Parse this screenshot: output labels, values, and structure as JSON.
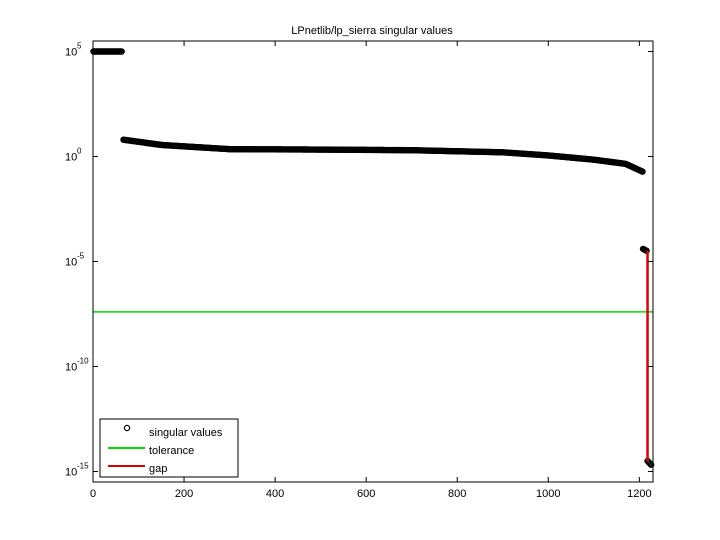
{
  "chart_data": {
    "type": "scatter",
    "title": "LPnetlib/lp_sierra singular values",
    "xlabel": "",
    "ylabel": "",
    "xlim": [
      0,
      1230
    ],
    "ylim_log10": [
      -15.5,
      5.5
    ],
    "y_scale": "log",
    "x_ticks": [
      0,
      200,
      400,
      600,
      800,
      1000,
      1200
    ],
    "y_ticks": [
      {
        "base": "10",
        "exp": "5",
        "log10": 5
      },
      {
        "base": "10",
        "exp": "0",
        "log10": 0
      },
      {
        "base": "10",
        "exp": "-5",
        "log10": -5
      },
      {
        "base": "10",
        "exp": "-10",
        "log10": -10
      },
      {
        "base": "10",
        "exp": "-15",
        "log10": -15
      }
    ],
    "grid": false,
    "legend_position": "bottom-left",
    "legend": [
      {
        "label": "singular values",
        "marker": "circle",
        "color": "#000000"
      },
      {
        "label": "tolerance",
        "marker": "line",
        "color": "#00e000"
      },
      {
        "label": "gap",
        "marker": "line",
        "color": "#e00000"
      }
    ],
    "series": [
      {
        "name": "singular values",
        "kind": "points",
        "color": "#000000",
        "segments": [
          {
            "x_from": 1,
            "x_to": 64,
            "log10_y": [
              5.0,
              5.0
            ]
          },
          {
            "x_from": 67,
            "x_to": 1207,
            "log10_y_knots": [
              [
                67,
                0.8
              ],
              [
                150,
                0.55
              ],
              [
                300,
                0.35
              ],
              [
                500,
                0.33
              ],
              [
                700,
                0.3
              ],
              [
                900,
                0.2
              ],
              [
                1000,
                0.05
              ],
              [
                1100,
                -0.15
              ],
              [
                1170,
                -0.35
              ],
              [
                1207,
                -0.72
              ]
            ]
          },
          {
            "x_from": 1208,
            "x_to": 1217,
            "log10_y": [
              -4.4,
              -4.5
            ]
          },
          {
            "x_from": 1218,
            "x_to": 1227,
            "log10_y": [
              -14.5,
              -14.7
            ]
          }
        ]
      },
      {
        "name": "tolerance",
        "kind": "hline",
        "color": "#00e000",
        "log10_y": -7.4
      },
      {
        "name": "gap",
        "kind": "vline",
        "color": "#e00000",
        "x": 1218,
        "log10_y": [
          -14.5,
          -4.5
        ]
      }
    ]
  }
}
